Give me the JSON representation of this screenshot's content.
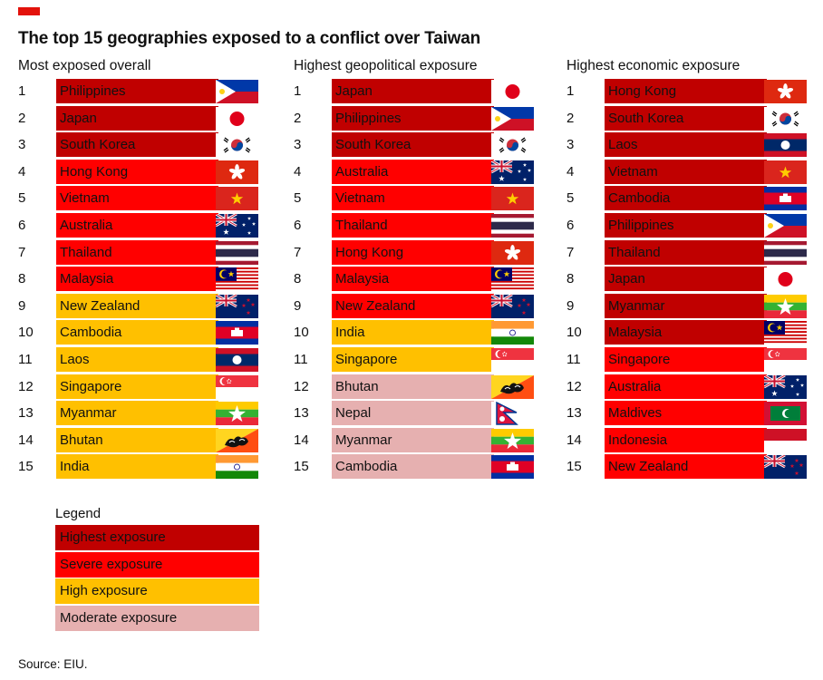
{
  "accent_color": "#e3120b",
  "title": "The top 15 geographies exposed to a conflict over Taiwan",
  "chart_data": {
    "type": "table",
    "title": "The top 15 geographies exposed to a conflict over Taiwan",
    "columns": [
      {
        "title": "Most exposed overall",
        "rows": [
          {
            "rank": "1",
            "name": "Philippines",
            "level": "highest",
            "flag": "philippines"
          },
          {
            "rank": "2",
            "name": "Japan",
            "level": "highest",
            "flag": "japan"
          },
          {
            "rank": "3",
            "name": "South Korea",
            "level": "highest",
            "flag": "south-korea"
          },
          {
            "rank": "4",
            "name": "Hong Kong",
            "level": "severe",
            "flag": "hong-kong"
          },
          {
            "rank": "5",
            "name": "Vietnam",
            "level": "severe",
            "flag": "vietnam"
          },
          {
            "rank": "6",
            "name": "Australia",
            "level": "severe",
            "flag": "australia"
          },
          {
            "rank": "7",
            "name": "Thailand",
            "level": "severe",
            "flag": "thailand"
          },
          {
            "rank": "8",
            "name": "Malaysia",
            "level": "severe",
            "flag": "malaysia"
          },
          {
            "rank": "9",
            "name": "New Zealand",
            "level": "high",
            "flag": "new-zealand"
          },
          {
            "rank": "10",
            "name": "Cambodia",
            "level": "high",
            "flag": "cambodia"
          },
          {
            "rank": "11",
            "name": "Laos",
            "level": "high",
            "flag": "laos"
          },
          {
            "rank": "12",
            "name": "Singapore",
            "level": "high",
            "flag": "singapore"
          },
          {
            "rank": "13",
            "name": "Myanmar",
            "level": "high",
            "flag": "myanmar"
          },
          {
            "rank": "14",
            "name": "Bhutan",
            "level": "high",
            "flag": "bhutan"
          },
          {
            "rank": "15",
            "name": "India",
            "level": "high",
            "flag": "india"
          }
        ]
      },
      {
        "title": "Highest geopolitical exposure",
        "rows": [
          {
            "rank": "1",
            "name": "Japan",
            "level": "highest",
            "flag": "japan"
          },
          {
            "rank": "2",
            "name": "Philippines",
            "level": "highest",
            "flag": "philippines"
          },
          {
            "rank": "3",
            "name": "South Korea",
            "level": "highest",
            "flag": "south-korea"
          },
          {
            "rank": "4",
            "name": "Australia",
            "level": "severe",
            "flag": "australia"
          },
          {
            "rank": "5",
            "name": "Vietnam",
            "level": "severe",
            "flag": "vietnam"
          },
          {
            "rank": "6",
            "name": "Thailand",
            "level": "severe",
            "flag": "thailand"
          },
          {
            "rank": "7",
            "name": "Hong Kong",
            "level": "severe",
            "flag": "hong-kong"
          },
          {
            "rank": "8",
            "name": "Malaysia",
            "level": "severe",
            "flag": "malaysia"
          },
          {
            "rank": "9",
            "name": "New Zealand",
            "level": "severe",
            "flag": "new-zealand"
          },
          {
            "rank": "10",
            "name": "India",
            "level": "high",
            "flag": "india"
          },
          {
            "rank": "11",
            "name": "Singapore",
            "level": "high",
            "flag": "singapore"
          },
          {
            "rank": "12",
            "name": "Bhutan",
            "level": "moderate",
            "flag": "bhutan"
          },
          {
            "rank": "13",
            "name": "Nepal",
            "level": "moderate",
            "flag": "nepal"
          },
          {
            "rank": "14",
            "name": "Myanmar",
            "level": "moderate",
            "flag": "myanmar"
          },
          {
            "rank": "15",
            "name": "Cambodia",
            "level": "moderate",
            "flag": "cambodia"
          }
        ]
      },
      {
        "title": "Highest economic exposure",
        "rows": [
          {
            "rank": "1",
            "name": "Hong Kong",
            "level": "highest",
            "flag": "hong-kong"
          },
          {
            "rank": "2",
            "name": "South Korea",
            "level": "highest",
            "flag": "south-korea"
          },
          {
            "rank": "3",
            "name": "Laos",
            "level": "highest",
            "flag": "laos"
          },
          {
            "rank": "4",
            "name": "Vietnam",
            "level": "highest",
            "flag": "vietnam"
          },
          {
            "rank": "5",
            "name": "Cambodia",
            "level": "highest",
            "flag": "cambodia"
          },
          {
            "rank": "6",
            "name": "Philippines",
            "level": "highest",
            "flag": "philippines"
          },
          {
            "rank": "7",
            "name": "Thailand",
            "level": "highest",
            "flag": "thailand"
          },
          {
            "rank": "8",
            "name": "Japan",
            "level": "highest",
            "flag": "japan"
          },
          {
            "rank": "9",
            "name": "Myanmar",
            "level": "highest",
            "flag": "myanmar"
          },
          {
            "rank": "10",
            "name": "Malaysia",
            "level": "highest",
            "flag": "malaysia"
          },
          {
            "rank": "11",
            "name": "Singapore",
            "level": "severe",
            "flag": "singapore"
          },
          {
            "rank": "12",
            "name": "Australia",
            "level": "severe",
            "flag": "australia"
          },
          {
            "rank": "13",
            "name": "Maldives",
            "level": "severe",
            "flag": "maldives"
          },
          {
            "rank": "14",
            "name": "Indonesia",
            "level": "severe",
            "flag": "indonesia"
          },
          {
            "rank": "15",
            "name": "New Zealand",
            "level": "severe",
            "flag": "new-zealand"
          }
        ]
      }
    ]
  },
  "legend": {
    "title": "Legend",
    "items": [
      {
        "level": "highest",
        "label": "Highest exposure"
      },
      {
        "level": "severe",
        "label": "Severe exposure"
      },
      {
        "level": "high",
        "label": "High exposure"
      },
      {
        "level": "moderate",
        "label": "Moderate exposure"
      }
    ]
  },
  "level_colors": {
    "highest": "#c00000",
    "severe": "#ff0000",
    "high": "#ffc000",
    "moderate": "#e6b0b0"
  },
  "source": "Source: EIU."
}
